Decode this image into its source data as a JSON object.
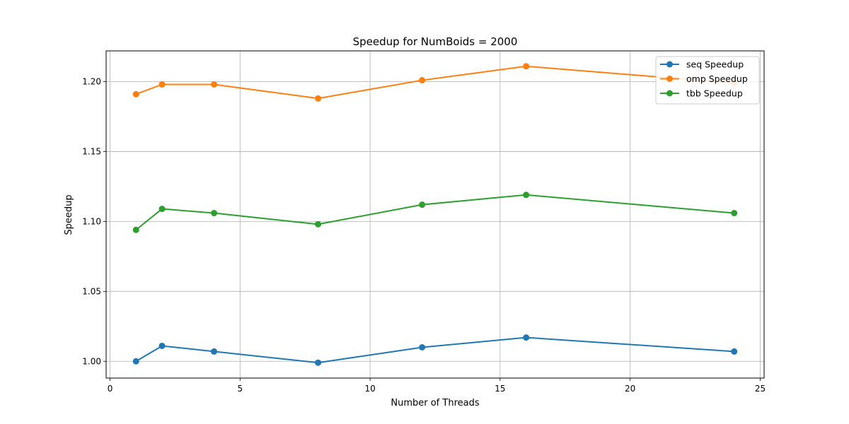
{
  "chart_data": {
    "type": "line",
    "title": "Speedup for NumBoids = 2000",
    "xlabel": "Number of Threads",
    "ylabel": "Speedup",
    "xlim": [
      -0.15,
      25.15
    ],
    "ylim": [
      0.988,
      1.222
    ],
    "xticks": [
      0,
      5,
      10,
      15,
      20,
      25
    ],
    "yticks": [
      1.0,
      1.05,
      1.1,
      1.15,
      1.2
    ],
    "ytick_labels": [
      "1.00",
      "1.05",
      "1.10",
      "1.15",
      "1.20"
    ],
    "grid": true,
    "legend_position": "top-right",
    "x": [
      1,
      2,
      4,
      8,
      12,
      16,
      24
    ],
    "series": [
      {
        "name": "seq Speedup",
        "color": "#1f77b4",
        "values": [
          1.0,
          1.011,
          1.007,
          0.999,
          1.01,
          1.017,
          1.007
        ]
      },
      {
        "name": "omp Speedup",
        "color": "#ff7f0e",
        "values": [
          1.191,
          1.198,
          1.198,
          1.188,
          1.201,
          1.211,
          1.199
        ]
      },
      {
        "name": "tbb Speedup",
        "color": "#2ca02c",
        "values": [
          1.094,
          1.109,
          1.106,
          1.098,
          1.112,
          1.119,
          1.106
        ]
      }
    ]
  }
}
